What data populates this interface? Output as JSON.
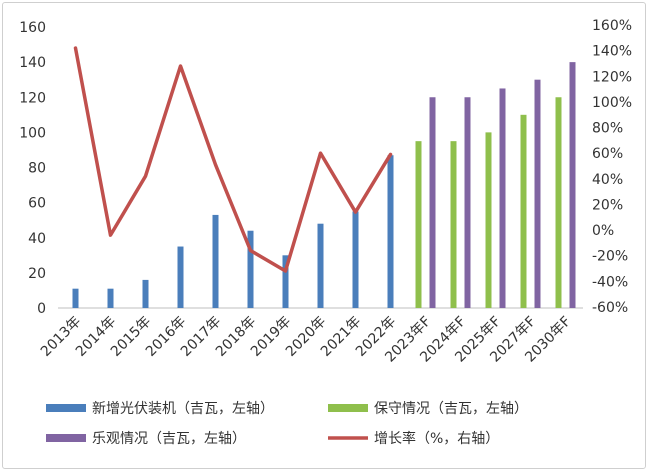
{
  "chart_data": {
    "type": "bar",
    "categories": [
      "2013年",
      "2014年",
      "2015年",
      "2016年",
      "2017年",
      "2018年",
      "2019年",
      "2020年",
      "2021年",
      "2022年",
      "2023年F",
      "2024年F",
      "2025年F",
      "2027年F",
      "2030年F"
    ],
    "series": [
      {
        "name": "新增光伏装机（吉瓦，左轴）",
        "type": "bar",
        "axis": "left",
        "color": "#4a7ebb",
        "values": [
          11,
          11,
          16,
          35,
          53,
          44,
          30,
          48,
          55,
          87,
          null,
          null,
          null,
          null,
          null
        ]
      },
      {
        "name": "保守情况（吉瓦，左轴）",
        "type": "bar",
        "axis": "left",
        "color": "#8fbf4c",
        "values": [
          null,
          null,
          null,
          null,
          null,
          null,
          null,
          null,
          null,
          null,
          95,
          95,
          100,
          110,
          120
        ]
      },
      {
        "name": "乐观情况（吉瓦，左轴）",
        "type": "bar",
        "axis": "left",
        "color": "#8064a2",
        "values": [
          null,
          null,
          null,
          null,
          null,
          null,
          null,
          null,
          null,
          null,
          120,
          120,
          125,
          130,
          140
        ]
      },
      {
        "name": "增长率（%，右轴）",
        "type": "line",
        "axis": "right",
        "color": "#c0504d",
        "values": [
          142,
          -4,
          42,
          128,
          51,
          -16,
          -32,
          60,
          14,
          59,
          null,
          null,
          null,
          null,
          null
        ]
      }
    ],
    "y_left": {
      "min": 0,
      "max": 160,
      "step": 20,
      "ticks": [
        "0",
        "20",
        "40",
        "60",
        "80",
        "100",
        "120",
        "140",
        "160"
      ]
    },
    "y_right": {
      "min": -60,
      "max": 160,
      "step": 20,
      "ticks": [
        "-60%",
        "-40%",
        "-20%",
        "0%",
        "20%",
        "40%",
        "60%",
        "80%",
        "100%",
        "120%",
        "140%",
        "160%"
      ]
    },
    "grid": false,
    "legend_position": "bottom"
  },
  "legend": [
    {
      "label": "新增光伏装机（吉瓦，左轴）",
      "kind": "bar",
      "color": "#4a7ebb"
    },
    {
      "label": "保守情况（吉瓦，左轴）",
      "kind": "bar",
      "color": "#8fbf4c"
    },
    {
      "label": "乐观情况（吉瓦，左轴）",
      "kind": "bar",
      "color": "#8064a2"
    },
    {
      "label": "增长率（%，右轴）",
      "kind": "line",
      "color": "#c0504d"
    }
  ]
}
